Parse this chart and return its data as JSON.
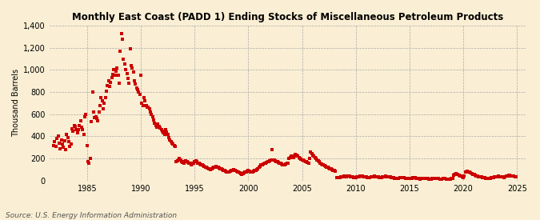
{
  "title": "Monthly East Coast (PADD 1) Ending Stocks of Miscellaneous Petroleum Products",
  "ylabel": "Thousand Barrels",
  "source": "Source: U.S. Energy Information Administration",
  "background_color": "#faefd4",
  "plot_bg_color": "#faefd4",
  "dot_color": "#cc0000",
  "ylim": [
    0,
    1400
  ],
  "yticks": [
    0,
    200,
    400,
    600,
    800,
    1000,
    1200,
    1400
  ],
  "ytick_labels": [
    "0",
    "200",
    "400",
    "600",
    "800",
    "1,000",
    "1,200",
    "1,400"
  ],
  "xlim_start": 1981.5,
  "xlim_end": 2025.8,
  "xticks": [
    1985,
    1990,
    1995,
    2000,
    2005,
    2010,
    2015,
    2020,
    2025
  ],
  "data": [
    [
      1981.9,
      320
    ],
    [
      1982.0,
      350
    ],
    [
      1982.1,
      310
    ],
    [
      1982.2,
      380
    ],
    [
      1982.3,
      400
    ],
    [
      1982.4,
      340
    ],
    [
      1982.5,
      290
    ],
    [
      1982.6,
      370
    ],
    [
      1982.7,
      330
    ],
    [
      1982.8,
      300
    ],
    [
      1982.9,
      360
    ],
    [
      1983.0,
      280
    ],
    [
      1983.1,
      420
    ],
    [
      1983.2,
      390
    ],
    [
      1983.3,
      350
    ],
    [
      1983.4,
      310
    ],
    [
      1983.5,
      330
    ],
    [
      1983.6,
      470
    ],
    [
      1983.7,
      450
    ],
    [
      1983.8,
      500
    ],
    [
      1983.9,
      490
    ],
    [
      1984.0,
      460
    ],
    [
      1984.1,
      430
    ],
    [
      1984.2,
      460
    ],
    [
      1984.3,
      500
    ],
    [
      1984.4,
      540
    ],
    [
      1984.5,
      480
    ],
    [
      1984.6,
      460
    ],
    [
      1984.7,
      420
    ],
    [
      1984.8,
      580
    ],
    [
      1984.9,
      600
    ],
    [
      1985.0,
      320
    ],
    [
      1985.1,
      170
    ],
    [
      1985.2,
      155
    ],
    [
      1985.3,
      200
    ],
    [
      1985.4,
      530
    ],
    [
      1985.5,
      800
    ],
    [
      1985.6,
      620
    ],
    [
      1985.7,
      570
    ],
    [
      1985.8,
      580
    ],
    [
      1985.9,
      560
    ],
    [
      1986.0,
      540
    ],
    [
      1986.1,
      620
    ],
    [
      1986.2,
      680
    ],
    [
      1986.3,
      750
    ],
    [
      1986.4,
      720
    ],
    [
      1986.5,
      650
    ],
    [
      1986.6,
      700
    ],
    [
      1986.7,
      750
    ],
    [
      1986.8,
      810
    ],
    [
      1986.9,
      860
    ],
    [
      1987.0,
      900
    ],
    [
      1987.1,
      850
    ],
    [
      1987.2,
      890
    ],
    [
      1987.3,
      930
    ],
    [
      1987.4,
      960
    ],
    [
      1987.5,
      1000
    ],
    [
      1987.6,
      950
    ],
    [
      1987.7,
      990
    ],
    [
      1987.8,
      1020
    ],
    [
      1987.9,
      950
    ],
    [
      1988.0,
      880
    ],
    [
      1988.1,
      1170
    ],
    [
      1988.2,
      1330
    ],
    [
      1988.3,
      1280
    ],
    [
      1988.4,
      1100
    ],
    [
      1988.5,
      1050
    ],
    [
      1988.6,
      1000
    ],
    [
      1988.7,
      970
    ],
    [
      1988.8,
      920
    ],
    [
      1988.9,
      880
    ],
    [
      1989.0,
      1190
    ],
    [
      1989.1,
      1040
    ],
    [
      1989.2,
      1020
    ],
    [
      1989.3,
      980
    ],
    [
      1989.4,
      900
    ],
    [
      1989.5,
      870
    ],
    [
      1989.6,
      840
    ],
    [
      1989.7,
      820
    ],
    [
      1989.8,
      800
    ],
    [
      1989.9,
      780
    ],
    [
      1990.0,
      950
    ],
    [
      1990.1,
      700
    ],
    [
      1990.2,
      680
    ],
    [
      1990.3,
      750
    ],
    [
      1990.4,
      720
    ],
    [
      1990.5,
      680
    ],
    [
      1990.6,
      660
    ],
    [
      1990.7,
      660
    ],
    [
      1990.8,
      650
    ],
    [
      1990.9,
      620
    ],
    [
      1991.0,
      600
    ],
    [
      1991.1,
      580
    ],
    [
      1991.2,
      550
    ],
    [
      1991.3,
      520
    ],
    [
      1991.4,
      500
    ],
    [
      1991.5,
      480
    ],
    [
      1991.6,
      510
    ],
    [
      1991.7,
      490
    ],
    [
      1991.8,
      475
    ],
    [
      1991.9,
      460
    ],
    [
      1992.0,
      445
    ],
    [
      1992.1,
      430
    ],
    [
      1992.2,
      420
    ],
    [
      1992.3,
      460
    ],
    [
      1992.4,
      440
    ],
    [
      1992.5,
      420
    ],
    [
      1992.6,
      390
    ],
    [
      1992.7,
      370
    ],
    [
      1992.8,
      350
    ],
    [
      1992.9,
      340
    ],
    [
      1993.0,
      330
    ],
    [
      1993.1,
      320
    ],
    [
      1993.2,
      310
    ],
    [
      1993.3,
      170
    ],
    [
      1993.4,
      180
    ],
    [
      1993.5,
      190
    ],
    [
      1993.6,
      200
    ],
    [
      1993.7,
      185
    ],
    [
      1993.8,
      175
    ],
    [
      1993.9,
      165
    ],
    [
      1994.0,
      160
    ],
    [
      1994.1,
      170
    ],
    [
      1994.2,
      180
    ],
    [
      1994.3,
      175
    ],
    [
      1994.4,
      165
    ],
    [
      1994.5,
      160
    ],
    [
      1994.6,
      155
    ],
    [
      1994.7,
      145
    ],
    [
      1994.8,
      150
    ],
    [
      1994.9,
      160
    ],
    [
      1995.0,
      175
    ],
    [
      1995.1,
      180
    ],
    [
      1995.2,
      170
    ],
    [
      1995.3,
      160
    ],
    [
      1995.4,
      155
    ],
    [
      1995.5,
      150
    ],
    [
      1995.6,
      145
    ],
    [
      1995.7,
      140
    ],
    [
      1995.8,
      135
    ],
    [
      1995.9,
      130
    ],
    [
      1996.0,
      125
    ],
    [
      1996.1,
      120
    ],
    [
      1996.2,
      115
    ],
    [
      1996.3,
      110
    ],
    [
      1996.4,
      105
    ],
    [
      1996.5,
      100
    ],
    [
      1996.6,
      110
    ],
    [
      1996.7,
      115
    ],
    [
      1996.8,
      120
    ],
    [
      1996.9,
      125
    ],
    [
      1997.0,
      130
    ],
    [
      1997.1,
      125
    ],
    [
      1997.2,
      120
    ],
    [
      1997.3,
      115
    ],
    [
      1997.4,
      110
    ],
    [
      1997.5,
      105
    ],
    [
      1997.6,
      100
    ],
    [
      1997.7,
      95
    ],
    [
      1997.8,
      90
    ],
    [
      1997.9,
      85
    ],
    [
      1998.0,
      80
    ],
    [
      1998.1,
      75
    ],
    [
      1998.2,
      80
    ],
    [
      1998.3,
      85
    ],
    [
      1998.4,
      90
    ],
    [
      1998.5,
      95
    ],
    [
      1998.6,
      100
    ],
    [
      1998.7,
      95
    ],
    [
      1998.8,
      90
    ],
    [
      1998.9,
      85
    ],
    [
      1999.0,
      80
    ],
    [
      1999.1,
      75
    ],
    [
      1999.2,
      70
    ],
    [
      1999.3,
      65
    ],
    [
      1999.4,
      60
    ],
    [
      1999.5,
      65
    ],
    [
      1999.6,
      70
    ],
    [
      1999.7,
      75
    ],
    [
      1999.8,
      80
    ],
    [
      1999.9,
      85
    ],
    [
      2000.0,
      90
    ],
    [
      2000.1,
      85
    ],
    [
      2000.2,
      80
    ],
    [
      2000.3,
      75
    ],
    [
      2000.4,
      80
    ],
    [
      2000.5,
      85
    ],
    [
      2000.6,
      90
    ],
    [
      2000.7,
      95
    ],
    [
      2000.8,
      100
    ],
    [
      2000.9,
      110
    ],
    [
      2001.0,
      120
    ],
    [
      2001.1,
      130
    ],
    [
      2001.2,
      140
    ],
    [
      2001.3,
      145
    ],
    [
      2001.4,
      150
    ],
    [
      2001.5,
      155
    ],
    [
      2001.6,
      160
    ],
    [
      2001.7,
      165
    ],
    [
      2001.8,
      170
    ],
    [
      2001.9,
      175
    ],
    [
      2002.0,
      180
    ],
    [
      2002.1,
      185
    ],
    [
      2002.2,
      280
    ],
    [
      2002.3,
      190
    ],
    [
      2002.4,
      185
    ],
    [
      2002.5,
      180
    ],
    [
      2002.6,
      175
    ],
    [
      2002.7,
      170
    ],
    [
      2002.8,
      165
    ],
    [
      2002.9,
      160
    ],
    [
      2003.0,
      155
    ],
    [
      2003.1,
      150
    ],
    [
      2003.2,
      145
    ],
    [
      2003.3,
      140
    ],
    [
      2003.4,
      145
    ],
    [
      2003.5,
      150
    ],
    [
      2003.6,
      155
    ],
    [
      2003.7,
      160
    ],
    [
      2003.8,
      200
    ],
    [
      2003.9,
      210
    ],
    [
      2004.0,
      220
    ],
    [
      2004.1,
      215
    ],
    [
      2004.2,
      210
    ],
    [
      2004.3,
      220
    ],
    [
      2004.4,
      240
    ],
    [
      2004.5,
      230
    ],
    [
      2004.6,
      220
    ],
    [
      2004.7,
      210
    ],
    [
      2004.8,
      200
    ],
    [
      2004.9,
      195
    ],
    [
      2005.0,
      190
    ],
    [
      2005.1,
      185
    ],
    [
      2005.2,
      180
    ],
    [
      2005.3,
      175
    ],
    [
      2005.4,
      170
    ],
    [
      2005.5,
      165
    ],
    [
      2005.6,
      160
    ],
    [
      2005.7,
      200
    ],
    [
      2005.8,
      260
    ],
    [
      2005.9,
      245
    ],
    [
      2006.0,
      230
    ],
    [
      2006.1,
      220
    ],
    [
      2006.2,
      210
    ],
    [
      2006.3,
      200
    ],
    [
      2006.4,
      190
    ],
    [
      2006.5,
      180
    ],
    [
      2006.6,
      170
    ],
    [
      2006.7,
      160
    ],
    [
      2006.8,
      150
    ],
    [
      2006.9,
      145
    ],
    [
      2007.0,
      140
    ],
    [
      2007.1,
      135
    ],
    [
      2007.2,
      130
    ],
    [
      2007.3,
      125
    ],
    [
      2007.4,
      120
    ],
    [
      2007.5,
      115
    ],
    [
      2007.6,
      110
    ],
    [
      2007.7,
      105
    ],
    [
      2007.8,
      100
    ],
    [
      2007.9,
      95
    ],
    [
      2008.0,
      90
    ],
    [
      2008.1,
      85
    ],
    [
      2008.2,
      30
    ],
    [
      2008.3,
      25
    ],
    [
      2008.4,
      28
    ],
    [
      2008.5,
      30
    ],
    [
      2008.6,
      32
    ],
    [
      2008.7,
      35
    ],
    [
      2008.8,
      38
    ],
    [
      2008.9,
      40
    ],
    [
      2009.0,
      35
    ],
    [
      2009.1,
      38
    ],
    [
      2009.2,
      42
    ],
    [
      2009.3,
      45
    ],
    [
      2009.4,
      40
    ],
    [
      2009.5,
      38
    ],
    [
      2009.6,
      35
    ],
    [
      2009.7,
      33
    ],
    [
      2009.8,
      30
    ],
    [
      2009.9,
      28
    ],
    [
      2010.0,
      30
    ],
    [
      2010.1,
      32
    ],
    [
      2010.2,
      35
    ],
    [
      2010.3,
      38
    ],
    [
      2010.4,
      40
    ],
    [
      2010.5,
      42
    ],
    [
      2010.6,
      40
    ],
    [
      2010.7,
      38
    ],
    [
      2010.8,
      36
    ],
    [
      2010.9,
      34
    ],
    [
      2011.0,
      32
    ],
    [
      2011.1,
      30
    ],
    [
      2011.2,
      28
    ],
    [
      2011.3,
      30
    ],
    [
      2011.4,
      32
    ],
    [
      2011.5,
      35
    ],
    [
      2011.6,
      38
    ],
    [
      2011.7,
      40
    ],
    [
      2011.8,
      38
    ],
    [
      2011.9,
      36
    ],
    [
      2012.0,
      34
    ],
    [
      2012.1,
      32
    ],
    [
      2012.2,
      30
    ],
    [
      2012.3,
      28
    ],
    [
      2012.4,
      30
    ],
    [
      2012.5,
      32
    ],
    [
      2012.6,
      35
    ],
    [
      2012.7,
      38
    ],
    [
      2012.8,
      40
    ],
    [
      2012.9,
      38
    ],
    [
      2013.0,
      36
    ],
    [
      2013.1,
      34
    ],
    [
      2013.2,
      32
    ],
    [
      2013.3,
      30
    ],
    [
      2013.4,
      28
    ],
    [
      2013.5,
      26
    ],
    [
      2013.6,
      24
    ],
    [
      2013.7,
      22
    ],
    [
      2013.8,
      20
    ],
    [
      2013.9,
      22
    ],
    [
      2014.0,
      24
    ],
    [
      2014.1,
      26
    ],
    [
      2014.2,
      28
    ],
    [
      2014.3,
      30
    ],
    [
      2014.4,
      28
    ],
    [
      2014.5,
      26
    ],
    [
      2014.6,
      24
    ],
    [
      2014.7,
      22
    ],
    [
      2014.8,
      20
    ],
    [
      2014.9,
      18
    ],
    [
      2015.0,
      20
    ],
    [
      2015.1,
      22
    ],
    [
      2015.2,
      24
    ],
    [
      2015.3,
      26
    ],
    [
      2015.4,
      28
    ],
    [
      2015.5,
      26
    ],
    [
      2015.6,
      24
    ],
    [
      2015.7,
      22
    ],
    [
      2015.8,
      20
    ],
    [
      2015.9,
      18
    ],
    [
      2016.0,
      16
    ],
    [
      2016.1,
      18
    ],
    [
      2016.2,
      20
    ],
    [
      2016.3,
      22
    ],
    [
      2016.4,
      24
    ],
    [
      2016.5,
      22
    ],
    [
      2016.6,
      20
    ],
    [
      2016.7,
      18
    ],
    [
      2016.8,
      16
    ],
    [
      2016.9,
      14
    ],
    [
      2017.0,
      16
    ],
    [
      2017.1,
      18
    ],
    [
      2017.2,
      20
    ],
    [
      2017.3,
      22
    ],
    [
      2017.4,
      24
    ],
    [
      2017.5,
      22
    ],
    [
      2017.6,
      20
    ],
    [
      2017.7,
      18
    ],
    [
      2017.8,
      16
    ],
    [
      2017.9,
      14
    ],
    [
      2018.0,
      16
    ],
    [
      2018.1,
      18
    ],
    [
      2018.2,
      20
    ],
    [
      2018.3,
      18
    ],
    [
      2018.4,
      16
    ],
    [
      2018.5,
      14
    ],
    [
      2018.6,
      12
    ],
    [
      2018.7,
      14
    ],
    [
      2018.8,
      16
    ],
    [
      2018.9,
      18
    ],
    [
      2019.0,
      20
    ],
    [
      2019.1,
      50
    ],
    [
      2019.2,
      60
    ],
    [
      2019.3,
      65
    ],
    [
      2019.4,
      60
    ],
    [
      2019.5,
      55
    ],
    [
      2019.6,
      50
    ],
    [
      2019.7,
      45
    ],
    [
      2019.8,
      40
    ],
    [
      2019.9,
      35
    ],
    [
      2020.0,
      30
    ],
    [
      2020.1,
      45
    ],
    [
      2020.2,
      75
    ],
    [
      2020.3,
      80
    ],
    [
      2020.4,
      85
    ],
    [
      2020.5,
      80
    ],
    [
      2020.6,
      75
    ],
    [
      2020.7,
      70
    ],
    [
      2020.8,
      65
    ],
    [
      2020.9,
      60
    ],
    [
      2021.0,
      55
    ],
    [
      2021.1,
      50
    ],
    [
      2021.2,
      45
    ],
    [
      2021.3,
      40
    ],
    [
      2021.4,
      38
    ],
    [
      2021.5,
      36
    ],
    [
      2021.6,
      34
    ],
    [
      2021.7,
      32
    ],
    [
      2021.8,
      30
    ],
    [
      2021.9,
      28
    ],
    [
      2022.0,
      26
    ],
    [
      2022.1,
      24
    ],
    [
      2022.2,
      22
    ],
    [
      2022.3,
      20
    ],
    [
      2022.4,
      22
    ],
    [
      2022.5,
      24
    ],
    [
      2022.6,
      26
    ],
    [
      2022.7,
      28
    ],
    [
      2022.8,
      30
    ],
    [
      2022.9,
      32
    ],
    [
      2023.0,
      34
    ],
    [
      2023.1,
      36
    ],
    [
      2023.2,
      38
    ],
    [
      2023.3,
      40
    ],
    [
      2023.4,
      38
    ],
    [
      2023.5,
      36
    ],
    [
      2023.6,
      34
    ],
    [
      2023.7,
      32
    ],
    [
      2023.8,
      30
    ],
    [
      2023.9,
      35
    ],
    [
      2024.0,
      40
    ],
    [
      2024.1,
      45
    ],
    [
      2024.2,
      50
    ],
    [
      2024.3,
      48
    ],
    [
      2024.4,
      46
    ],
    [
      2024.5,
      44
    ],
    [
      2024.6,
      42
    ],
    [
      2024.7,
      40
    ],
    [
      2024.8,
      38
    ],
    [
      2024.9,
      36
    ]
  ]
}
